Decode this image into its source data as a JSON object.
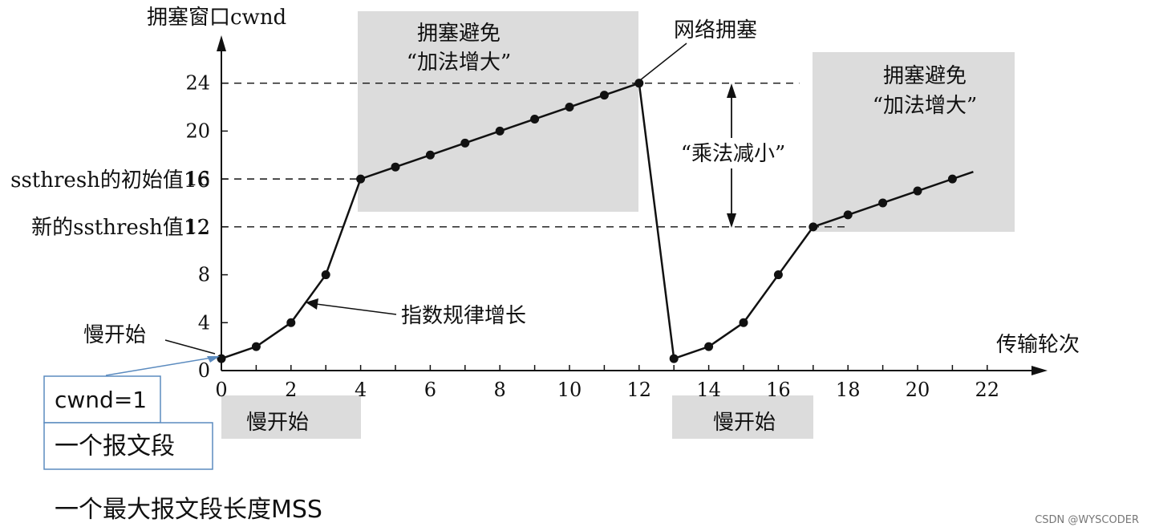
{
  "chart_data": {
    "type": "line",
    "y_axis_label": "拥塞窗口cwnd",
    "x_axis_label": "传输轮次",
    "x_ticks": [
      0,
      2,
      4,
      6,
      8,
      10,
      12,
      14,
      16,
      18,
      20,
      22
    ],
    "y_ticks": [
      0,
      4,
      8,
      12,
      16,
      20,
      24
    ],
    "xlim": [
      0,
      23
    ],
    "ylim": [
      0,
      27
    ],
    "ssthresh_initial": 16,
    "ssthresh_new": 12,
    "series": [
      {
        "points": [
          [
            0,
            1
          ],
          [
            1,
            2
          ],
          [
            2,
            4
          ],
          [
            3,
            8
          ],
          [
            4,
            16
          ],
          [
            5,
            17
          ],
          [
            6,
            18
          ],
          [
            7,
            19
          ],
          [
            8,
            20
          ],
          [
            9,
            21
          ],
          [
            10,
            22
          ],
          [
            11,
            23
          ],
          [
            12,
            24
          ],
          [
            13,
            1
          ],
          [
            14,
            2
          ],
          [
            15,
            4
          ],
          [
            16,
            8
          ],
          [
            17,
            12
          ],
          [
            18,
            13
          ],
          [
            19,
            14
          ],
          [
            20,
            15
          ],
          [
            21,
            16
          ]
        ],
        "line_end": [
          21.6,
          16.6
        ]
      }
    ],
    "annotations": {
      "ssthresh_initial_label": "ssthresh的初始值16",
      "ssthresh_new_label": "新的ssthresh值12",
      "congestion_avoidance_1_line1": "拥塞避免",
      "congestion_avoidance_1_line2": "“加法增大”",
      "congestion_avoidance_2_line1": "拥塞避免",
      "congestion_avoidance_2_line2": "“加法增大”",
      "network_congestion": "网络拥塞",
      "multiplicative_decrease": "“乘法减小”",
      "exponential_growth": "指数规律增长",
      "slow_start_pointer": "慢开始",
      "slow_start_1": "慢开始",
      "slow_start_2": "慢开始"
    }
  },
  "legend_box": {
    "cwnd_text": "cwnd=1",
    "segment_text": "一个报文段",
    "mss_text": "一个最大报文段长度MSS"
  },
  "watermark": "CSDN @WYSCODER",
  "colors": {
    "shade": "#dcdcdc",
    "callout_border": "#5b8bbf",
    "line": "#111111"
  }
}
